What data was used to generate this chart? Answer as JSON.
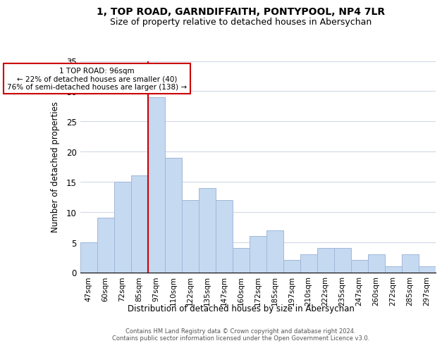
{
  "title": "1, TOP ROAD, GARNDIFFAITH, PONTYPOOL, NP4 7LR",
  "subtitle": "Size of property relative to detached houses in Abersychan",
  "xlabel": "Distribution of detached houses by size in Abersychan",
  "ylabel": "Number of detached properties",
  "bar_labels": [
    "47sqm",
    "60sqm",
    "72sqm",
    "85sqm",
    "97sqm",
    "110sqm",
    "122sqm",
    "135sqm",
    "147sqm",
    "160sqm",
    "172sqm",
    "185sqm",
    "197sqm",
    "210sqm",
    "222sqm",
    "235sqm",
    "247sqm",
    "260sqm",
    "272sqm",
    "285sqm",
    "297sqm"
  ],
  "bar_values": [
    5,
    9,
    15,
    16,
    29,
    19,
    12,
    14,
    12,
    4,
    6,
    7,
    2,
    3,
    4,
    4,
    2,
    3,
    1,
    3,
    1
  ],
  "bar_color": "#c5d9f1",
  "bar_edge_color": "#a0b8d8",
  "vline_x_index": 4,
  "vline_color": "#cc0000",
  "annotation_title": "1 TOP ROAD: 96sqm",
  "annotation_line1": "← 22% of detached houses are smaller (40)",
  "annotation_line2": "76% of semi-detached houses are larger (138) →",
  "annotation_box_color": "#ffffff",
  "annotation_box_edge": "#cc0000",
  "ylim": [
    0,
    35
  ],
  "yticks": [
    0,
    5,
    10,
    15,
    20,
    25,
    30,
    35
  ],
  "footer1": "Contains HM Land Registry data © Crown copyright and database right 2024.",
  "footer2": "Contains public sector information licensed under the Open Government Licence v3.0.",
  "bg_color": "#ffffff",
  "grid_color": "#d0d8e8",
  "title_fontsize": 10,
  "subtitle_fontsize": 9
}
